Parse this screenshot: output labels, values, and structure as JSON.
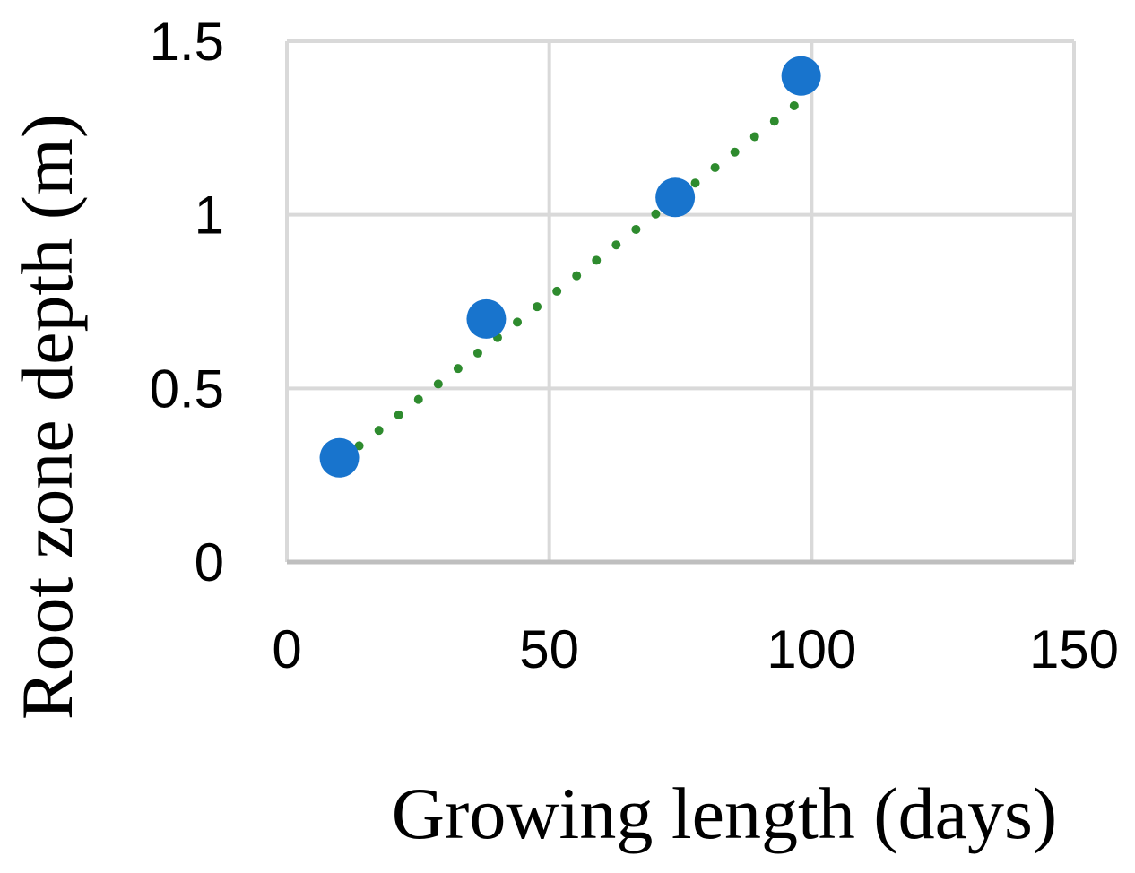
{
  "chart_data": {
    "type": "scatter",
    "title": "",
    "xlabel": "Growing length (days)",
    "ylabel": "Root zone depth (m)",
    "xlim": [
      0,
      150
    ],
    "ylim": [
      0,
      1.5
    ],
    "x_ticks": [
      0,
      50,
      100,
      150
    ],
    "y_ticks": [
      0,
      0.5,
      1,
      1.5
    ],
    "x_tick_labels": [
      "0",
      "50",
      "100",
      "150"
    ],
    "y_tick_labels": [
      "0",
      "0.5",
      "1",
      "1.5"
    ],
    "grid": true,
    "legend": "none",
    "series": [
      {
        "type": "scatter",
        "color": "#1874CD",
        "x": [
          10,
          38,
          74,
          98
        ],
        "y": [
          0.3,
          0.7,
          1.05,
          1.4
        ]
      }
    ],
    "trendline": {
      "type": "linear",
      "style": "dotted",
      "color": "#2E8B2E",
      "x": [
        10,
        98
      ],
      "y": [
        0.29,
        1.33
      ]
    },
    "colors": {
      "grid": "#D9D9D9",
      "axis": "#BFBFBF",
      "marker": "#1874CD",
      "trendline": "#2E8B2E"
    }
  }
}
